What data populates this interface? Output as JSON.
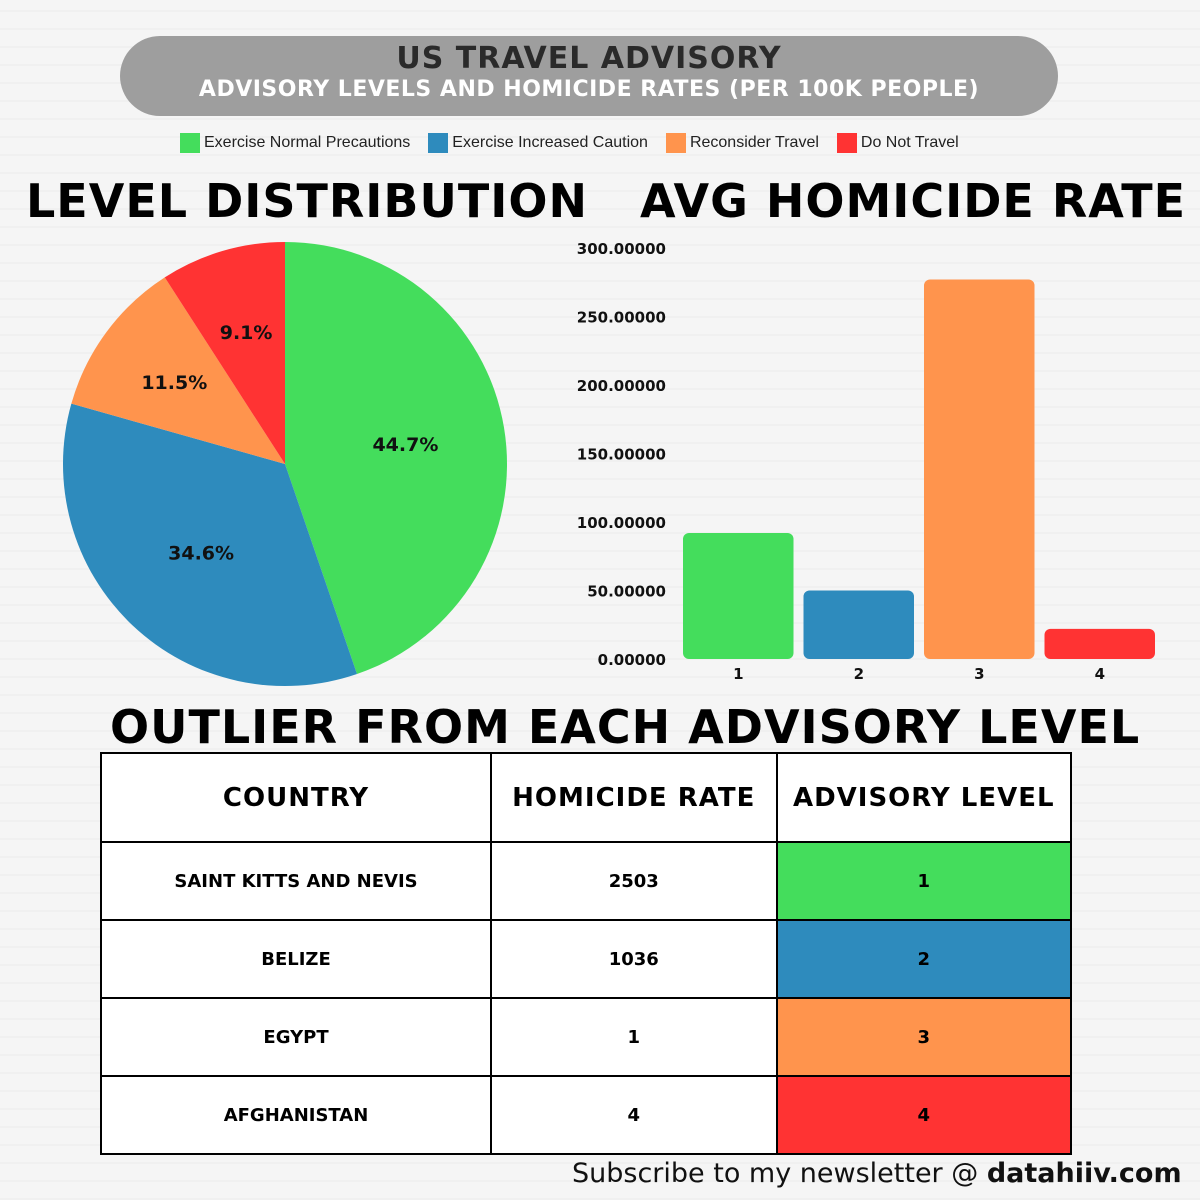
{
  "header": {
    "title": "US TRAVEL ADVISORY",
    "subtitle": "ADVISORY LEVELS AND HOMICIDE RATES (PER 100K PEOPLE)"
  },
  "legend": [
    {
      "label": "Exercise Normal Precautions",
      "color": "#44dd5c"
    },
    {
      "label": "Exercise Increased Caution",
      "color": "#2e8bbd"
    },
    {
      "label": "Reconsider Travel",
      "color": "#ff944d"
    },
    {
      "label": "Do Not Travel",
      "color": "#ff3333"
    }
  ],
  "chart_data": [
    {
      "type": "pie",
      "title": "LEVEL DISTRIBUTION",
      "slices": [
        {
          "label": "44.7%",
          "value": 44.7,
          "color": "#44dd5c"
        },
        {
          "label": "34.6%",
          "value": 34.6,
          "color": "#2e8bbd"
        },
        {
          "label": "11.5%",
          "value": 11.5,
          "color": "#ff944d"
        },
        {
          "label": "9.1%",
          "value": 9.1,
          "color": "#ff3333"
        }
      ]
    },
    {
      "type": "bar",
      "title": "AVG HOMICIDE RATE",
      "categories": [
        "1",
        "2",
        "3",
        "4"
      ],
      "values": [
        92,
        50,
        277,
        22
      ],
      "colors": [
        "#44dd5c",
        "#2e8bbd",
        "#ff944d",
        "#ff3333"
      ],
      "ylim": [
        0,
        300
      ],
      "yticks": [
        "0.00000",
        "50.00000",
        "100.00000",
        "150.00000",
        "200.00000",
        "250.00000",
        "300.00000"
      ],
      "ytick_values": [
        0,
        50,
        100,
        150,
        200,
        250,
        300
      ]
    }
  ],
  "table": {
    "title": "OUTLIER FROM EACH ADVISORY LEVEL",
    "headers": [
      "COUNTRY",
      "HOMICIDE RATE",
      "ADVISORY LEVEL"
    ],
    "rows": [
      {
        "country": "SAINT KITTS AND NEVIS",
        "rate": "2503",
        "level": "1",
        "color": "#44dd5c"
      },
      {
        "country": "BELIZE",
        "rate": "1036",
        "level": "2",
        "color": "#2e8bbd"
      },
      {
        "country": "EGYPT",
        "rate": "1",
        "level": "3",
        "color": "#ff944d"
      },
      {
        "country": "AFGHANISTAN",
        "rate": "4",
        "level": "4",
        "color": "#ff3333"
      }
    ]
  },
  "footer": {
    "text": "Subscribe to my newsletter @ ",
    "link": "datahiiv.com"
  }
}
